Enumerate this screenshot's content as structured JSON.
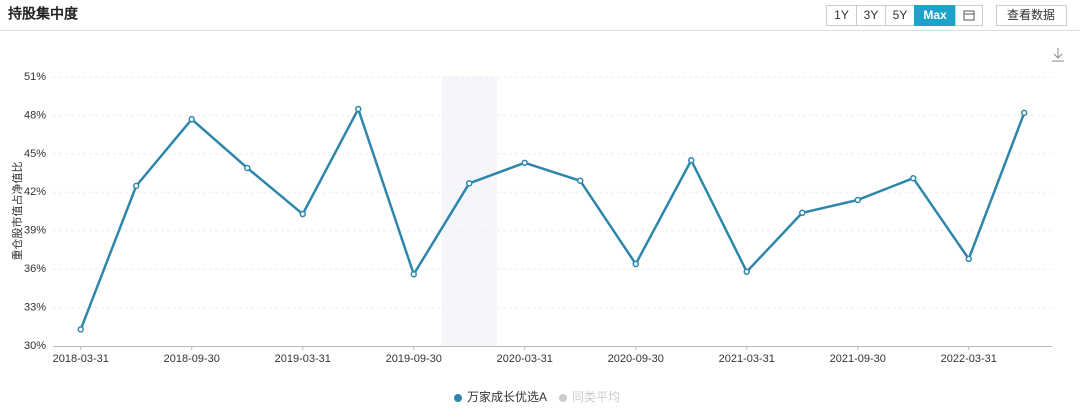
{
  "header": {
    "title": "持股集中度"
  },
  "controls": {
    "ranges": [
      "1Y",
      "3Y",
      "5Y",
      "Max"
    ],
    "active": 3,
    "view_data": "查看数据"
  },
  "chart_data": {
    "type": "line",
    "ylabel": "重仓股市值占净值比",
    "categories": [
      "2018-03-31",
      null,
      "2018-09-30",
      null,
      "2019-03-31",
      null,
      "2019-09-30",
      null,
      "2020-03-31",
      null,
      "2020-09-30",
      null,
      "2021-03-31",
      null,
      "2021-09-30",
      null,
      "2022-03-31",
      null
    ],
    "series": [
      {
        "name": "万家成长优选A",
        "color": "#2e86ab",
        "values": [
          31.3,
          42.5,
          47.7,
          43.9,
          40.3,
          48.5,
          35.6,
          42.7,
          44.3,
          42.9,
          36.4,
          44.5,
          35.8,
          40.4,
          41.4,
          43.1,
          36.8,
          48.2
        ]
      },
      {
        "name": "同类平均",
        "color": "#cccccc",
        "values": [
          null,
          null,
          null,
          null,
          null,
          null,
          null,
          null,
          null,
          null,
          null,
          null,
          null,
          null,
          null,
          null,
          null,
          null
        ]
      }
    ],
    "ylim": [
      30,
      51
    ],
    "yticks": [
      {
        "value": 30,
        "label": "30%"
      },
      {
        "value": 33,
        "label": "33%"
      },
      {
        "value": 36,
        "label": "36%"
      },
      {
        "value": 39,
        "label": "39%"
      },
      {
        "value": 42,
        "label": "42%"
      },
      {
        "value": 45,
        "label": "45%"
      },
      {
        "value": 48,
        "label": "48%"
      },
      {
        "value": 51,
        "label": "51%"
      }
    ],
    "grid": true
  }
}
